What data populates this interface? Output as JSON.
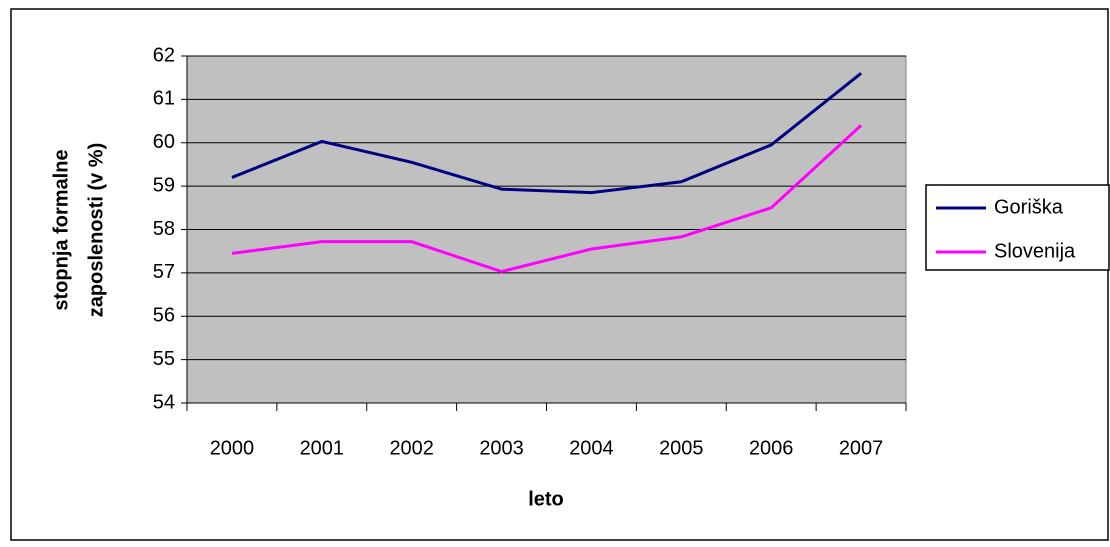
{
  "chart_data": {
    "type": "line",
    "x_label": "leto",
    "y_label": [
      "stopnja formalne",
      "zaposlenosti (v %)"
    ],
    "categories": [
      "2000",
      "2001",
      "2002",
      "2003",
      "2004",
      "2005",
      "2006",
      "2007"
    ],
    "series": [
      {
        "name": "Goriška",
        "color": "#000080",
        "values": [
          59.2,
          60.03,
          59.55,
          58.93,
          58.85,
          59.1,
          59.95,
          61.6
        ]
      },
      {
        "name": "Slovenija",
        "color": "#ff00ff",
        "values": [
          57.45,
          57.72,
          57.72,
          57.03,
          57.55,
          57.83,
          58.5,
          60.4
        ]
      }
    ],
    "ylim": [
      54,
      62
    ],
    "yticks": [
      54,
      55,
      56,
      57,
      58,
      59,
      60,
      61,
      62
    ],
    "grid": true,
    "plot_background": "#c0c0c0",
    "legend": "right"
  }
}
